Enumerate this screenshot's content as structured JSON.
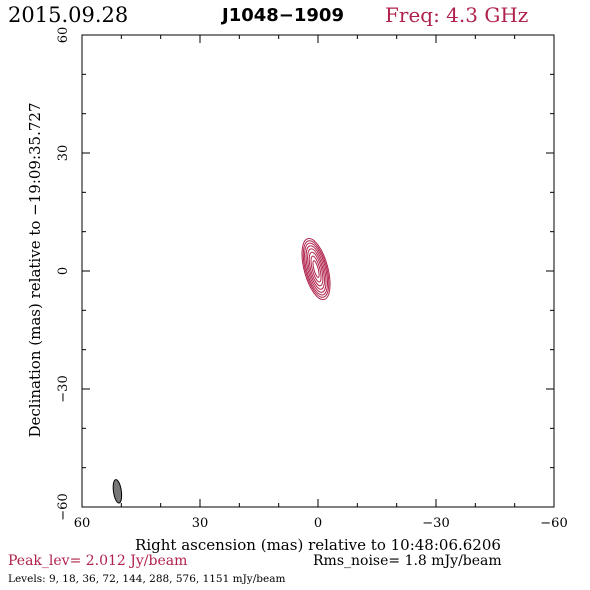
{
  "header": {
    "date": "2015.09.28",
    "source": "J1048−1909",
    "frequency": "Freq: 4.3 GHz"
  },
  "footer": {
    "peak": "Peak_lev=  2.012 Jy/beam",
    "rms": "Rms_noise=  1.8 mJy/beam",
    "levels": "Levels:   9,  18,  36,  72, 144, 288, 576, 1151 mJy/beam"
  },
  "colors": {
    "contour": "#b0224b",
    "beam": "#777777",
    "axes": "#000000"
  },
  "chart_data": {
    "type": "contour",
    "title": "J1048−1909",
    "xlabel": "Right ascension (mas) relative to 10:48:06.6206",
    "ylabel": "Declination (mas) relative to −19:09:35.727",
    "xlim": [
      60,
      -60
    ],
    "ylim": [
      -60,
      60
    ],
    "x_ticks": [
      60,
      30,
      0,
      -30,
      -60
    ],
    "y_ticks": [
      -60,
      -30,
      0,
      30,
      60
    ],
    "x_tick_labels": [
      "60",
      "30",
      "0",
      "−30",
      "−60"
    ],
    "y_tick_labels": [
      "−60",
      "−30",
      "0",
      "30",
      "60"
    ],
    "grid": false,
    "peak_jy_per_beam": 2.012,
    "rms_mjy_per_beam": 1.8,
    "levels_mjy_per_beam": [
      9,
      18,
      36,
      72,
      144,
      288,
      576,
      1151
    ],
    "component": {
      "center": [
        0.5,
        0.5
      ],
      "contours": [
        {
          "level": 9,
          "major_mas": 16.0,
          "minor_mas": 6.0
        },
        {
          "level": 18,
          "major_mas": 14.8,
          "minor_mas": 5.4
        },
        {
          "level": 36,
          "major_mas": 13.6,
          "minor_mas": 4.8
        },
        {
          "level": 72,
          "major_mas": 12.2,
          "minor_mas": 4.1
        },
        {
          "level": 144,
          "major_mas": 10.6,
          "minor_mas": 3.4
        },
        {
          "level": 288,
          "major_mas": 8.8,
          "minor_mas": 2.7
        },
        {
          "level": 576,
          "major_mas": 6.8,
          "minor_mas": 1.9
        },
        {
          "level": 1151,
          "major_mas": 4.4,
          "minor_mas": 1.1
        }
      ],
      "pa_deg": -15
    },
    "beam": {
      "center": [
        51.0,
        -56.0
      ],
      "major_mas": 6.0,
      "minor_mas": 2.0,
      "pa_deg": -8
    }
  }
}
